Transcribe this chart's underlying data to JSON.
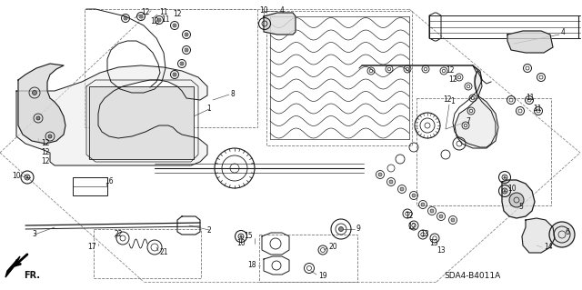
{
  "bg_color": "#f5f5f0",
  "line_color": "#1a1a1a",
  "label_color": "#111111",
  "diagram_code": "SDA4-B4011A",
  "fr_label": "FR.",
  "fig_width": 6.4,
  "fig_height": 3.19,
  "dpi": 100,
  "lw_main": 0.8,
  "lw_thin": 0.45,
  "lw_thick": 1.2
}
